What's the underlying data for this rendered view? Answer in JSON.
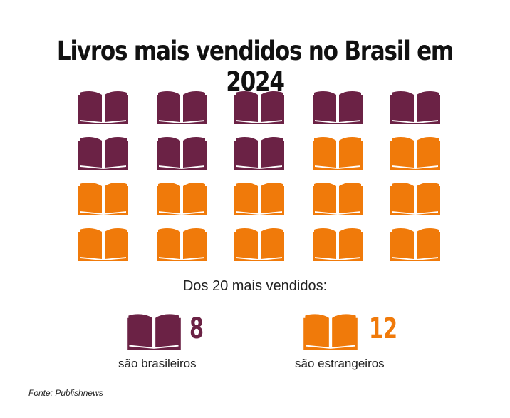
{
  "title": "Livros mais vendidos no Brasil em 2024",
  "subtitle": "Dos 20 mais vendidos:",
  "colors": {
    "brazilian": "#6b2245",
    "foreign": "#f07a0a"
  },
  "legend": [
    {
      "key": "brazilian",
      "count": "8",
      "label": "são brasileiros",
      "icon": "open-book-icon"
    },
    {
      "key": "foreign",
      "count": "12",
      "label": "são estrangeiros",
      "icon": "open-book-icon"
    }
  ],
  "source": {
    "prefix": "Fonte: ",
    "link_text": "Publishnews"
  },
  "chart_data": {
    "type": "pictogram",
    "title": "Livros mais vendidos no Brasil em 2024",
    "total": 20,
    "columns": 5,
    "categories": [
      "são brasileiros",
      "são estrangeiros"
    ],
    "values": [
      8,
      12
    ]
  }
}
